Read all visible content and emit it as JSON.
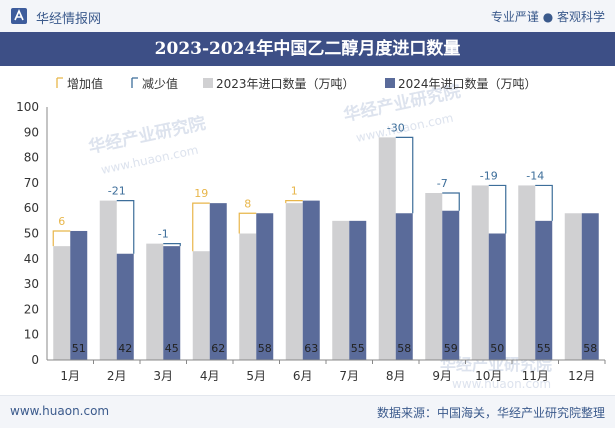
{
  "header": {
    "site_name": "华经情报网",
    "slogan": "专业严谨 ● 客观科学"
  },
  "footer": {
    "url": "www.huaon.com",
    "source": "数据来源：中国海关，华经产业研究院整理"
  },
  "watermarks": [
    "华经产业研究院",
    "www.huaon.com"
  ],
  "chart_data": {
    "type": "bar",
    "title": "2023-2024年中国乙二醇月度进口数量",
    "categories": [
      "1月",
      "2月",
      "3月",
      "4月",
      "5月",
      "6月",
      "7月",
      "8月",
      "9月",
      "10月",
      "11月",
      "12月"
    ],
    "series": [
      {
        "name": "2023年进口数量（万吨）",
        "values": [
          45,
          63,
          46,
          43,
          50,
          62,
          55,
          88,
          66,
          69,
          69,
          58
        ],
        "color": "#d0d0d2"
      },
      {
        "name": "2024年进口数量（万吨）",
        "values": [
          51,
          42,
          45,
          62,
          58,
          63,
          55,
          58,
          59,
          50,
          55,
          58
        ],
        "color": "#5a6b9a"
      }
    ],
    "data_labels_2024": [
      "51",
      "42",
      "45",
      "62",
      "58",
      "63",
      "55",
      "58",
      "59",
      "50",
      "55",
      "58"
    ],
    "changes": [
      {
        "index": 0,
        "label": "6",
        "kind": "increase"
      },
      {
        "index": 1,
        "label": "-21",
        "kind": "decrease"
      },
      {
        "index": 2,
        "label": "-1",
        "kind": "decrease"
      },
      {
        "index": 3,
        "label": "19",
        "kind": "increase"
      },
      {
        "index": 4,
        "label": "8",
        "kind": "increase"
      },
      {
        "index": 5,
        "label": "1",
        "kind": "increase"
      },
      {
        "index": 7,
        "label": "-30",
        "kind": "decrease"
      },
      {
        "index": 8,
        "label": "-7",
        "kind": "decrease"
      },
      {
        "index": 9,
        "label": "-19",
        "kind": "decrease"
      },
      {
        "index": 10,
        "label": "-14",
        "kind": "decrease"
      }
    ],
    "legend": {
      "increase_label": "增加值",
      "decrease_label": "减少值",
      "position": "top",
      "increase_color": "#e8b64a",
      "decrease_color": "#3d6e9a"
    },
    "y_ticks": [
      "0",
      "10",
      "20",
      "30",
      "40",
      "50",
      "60",
      "70",
      "80",
      "90",
      "100"
    ],
    "ylim": [
      0,
      100
    ],
    "grid": false
  }
}
